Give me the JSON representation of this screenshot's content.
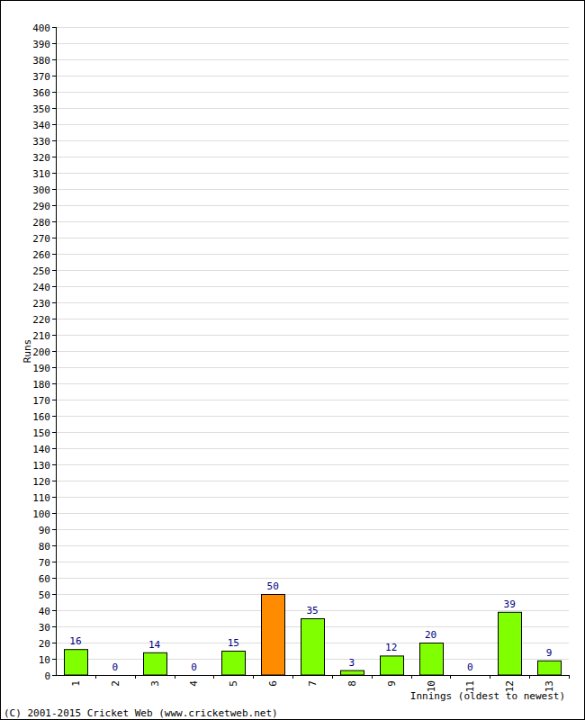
{
  "chart_data": {
    "type": "bar",
    "x_label": "Innings (oldest to newest)",
    "y_label": "Runs",
    "categories": [
      "1",
      "2",
      "3",
      "4",
      "5",
      "6",
      "7",
      "8",
      "9",
      "10",
      "11",
      "12",
      "13"
    ],
    "values": [
      16,
      0,
      14,
      0,
      15,
      50,
      35,
      3,
      12,
      20,
      0,
      39,
      9
    ],
    "colors": [
      "#80ff00",
      "#80ff00",
      "#80ff00",
      "#80ff00",
      "#80ff00",
      "#ff8c00",
      "#80ff00",
      "#80ff00",
      "#80ff00",
      "#80ff00",
      "#80ff00",
      "#80ff00",
      "#80ff00"
    ],
    "ylim": [
      0,
      400
    ],
    "yticks": [
      0,
      10,
      20,
      30,
      40,
      50,
      60,
      70,
      80,
      90,
      100,
      110,
      120,
      130,
      140,
      150,
      160,
      170,
      180,
      190,
      200,
      210,
      220,
      230,
      240,
      250,
      260,
      270,
      280,
      290,
      300,
      310,
      320,
      330,
      340,
      350,
      360,
      370,
      380,
      390,
      400
    ],
    "grid": true,
    "data_labels": true,
    "annotations": [
      "(C) 2001-2015 Cricket Web (www.cricketweb.net)"
    ]
  }
}
